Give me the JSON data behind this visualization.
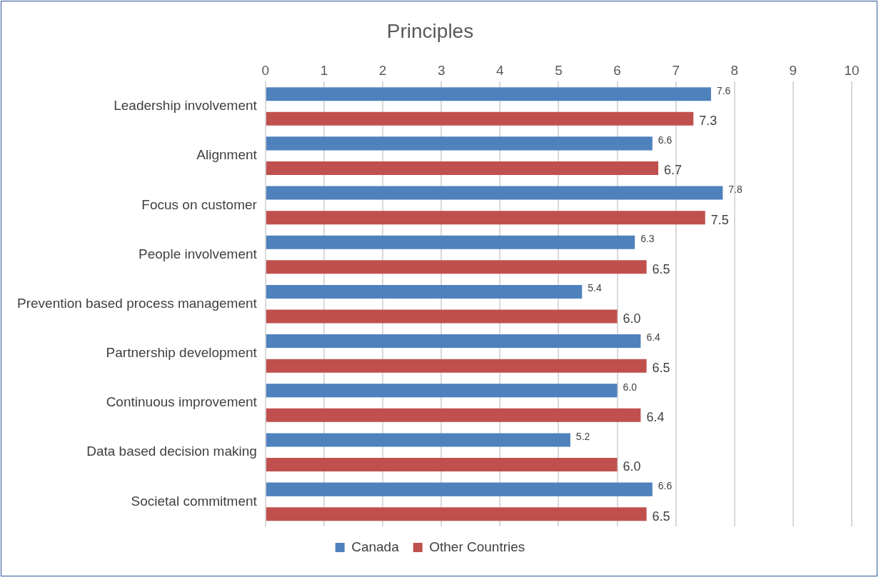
{
  "chart_data": {
    "type": "bar",
    "orientation": "horizontal",
    "title": "Principles",
    "categories": [
      "Leadership involvement",
      "Alignment",
      "Focus on customer",
      "People involvement",
      "Prevention based process management",
      "Partnership development",
      "Continuous improvement",
      "Data based decision making",
      "Societal commitment"
    ],
    "series": [
      {
        "name": "Canada",
        "color": "#4f81bd",
        "values": [
          7.6,
          6.6,
          7.8,
          6.3,
          5.4,
          6.4,
          6.0,
          5.2,
          6.6
        ],
        "value_labels": [
          "7.6",
          "6.6",
          "7.8",
          "6.3",
          "5.4",
          "6.4",
          "6.0",
          "5.2",
          "6.6"
        ]
      },
      {
        "name": "Other Countries",
        "color": "#c0504d",
        "values": [
          7.3,
          6.7,
          7.5,
          6.5,
          6.0,
          6.5,
          6.4,
          6.0,
          6.5
        ],
        "value_labels": [
          "7.3",
          "6.7",
          "7.5",
          "6.5",
          "6.0",
          "6.5",
          "6.4",
          "6.0",
          "6.5"
        ]
      }
    ],
    "xlim": [
      0,
      10
    ],
    "xticks": [
      0,
      1,
      2,
      3,
      4,
      5,
      6,
      7,
      8,
      9,
      10
    ],
    "grid": "x",
    "legend": "bottom"
  }
}
